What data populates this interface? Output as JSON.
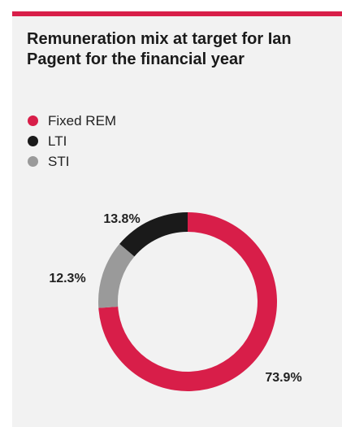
{
  "header": {
    "title": "Remuneration mix at target for Ian Pagent for the financial year",
    "accent_color": "#d81e49"
  },
  "legend": [
    {
      "label": "Fixed REM",
      "color": "#d81e49"
    },
    {
      "label": "LTI",
      "color": "#1a1a1a"
    },
    {
      "label": "STI",
      "color": "#9a9a9a"
    }
  ],
  "chart_data": {
    "type": "pie",
    "style": "donut",
    "legend_position": "top-left",
    "slices": [
      {
        "label": "Fixed REM",
        "value": 73.9,
        "display": "73.9%",
        "color": "#d81e49"
      },
      {
        "label": "STI",
        "value": 12.3,
        "display": "12.3%",
        "color": "#9a9a9a"
      },
      {
        "label": "LTI",
        "value": 13.8,
        "display": "13.8%",
        "color": "#1a1a1a"
      }
    ]
  }
}
